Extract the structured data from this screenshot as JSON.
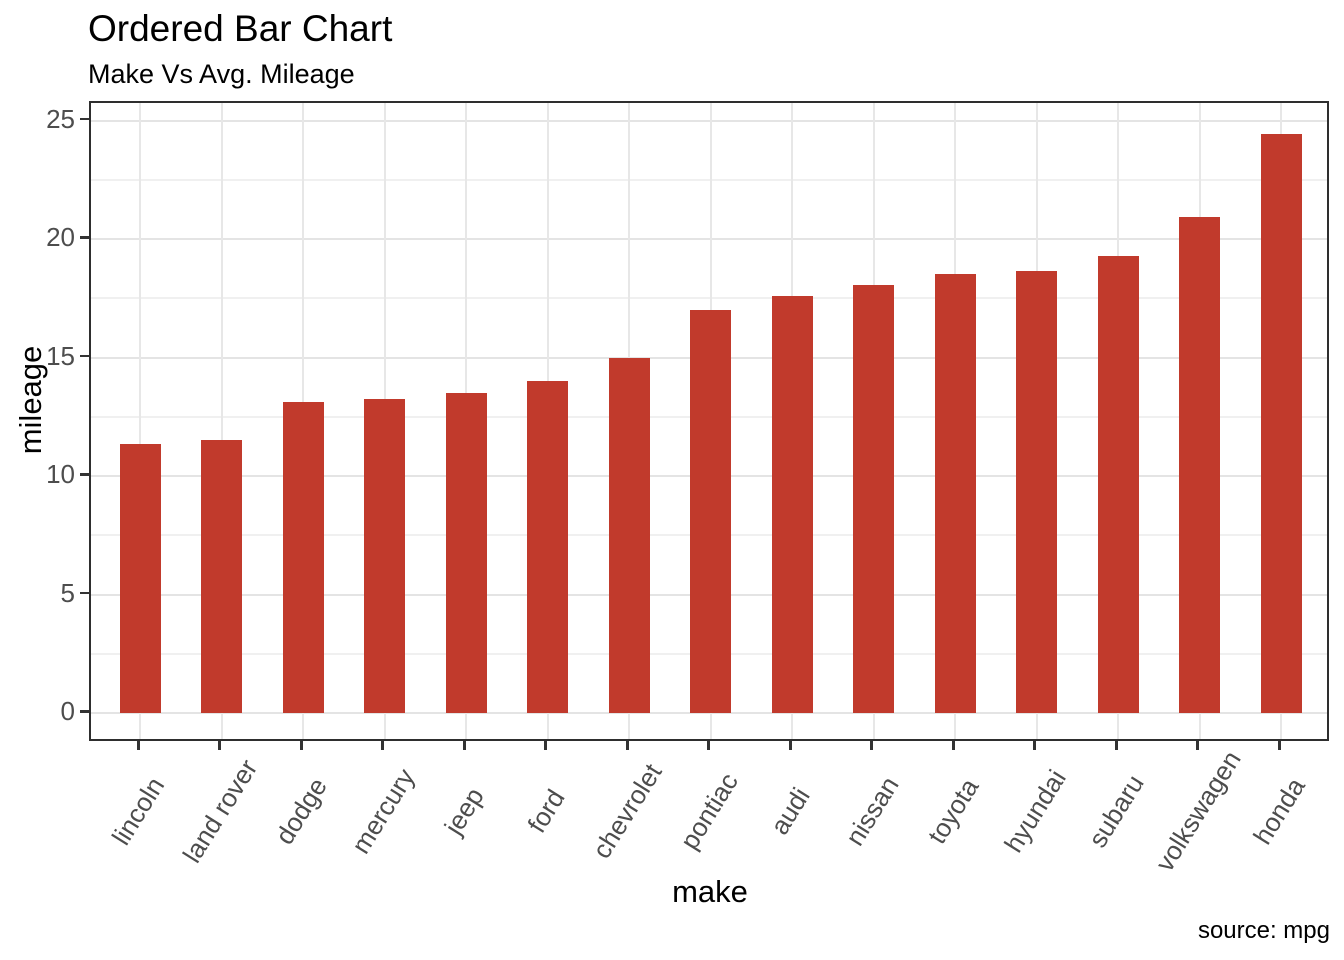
{
  "header": {
    "title": "Ordered Bar Chart",
    "subtitle": "Make Vs Avg. Mileage"
  },
  "footer": {
    "caption": "source: mpg"
  },
  "colors": {
    "bar_fill": "#c13a2c",
    "grid_major": "#e4e4e4",
    "grid_minor": "#f0f0f0",
    "panel_border": "#2e2e2e",
    "tick_mark": "#333333",
    "tick_text": "#4d4d4d",
    "title_text": "#000000",
    "background": "#ffffff"
  },
  "chart_data": {
    "type": "bar",
    "title": "Ordered Bar Chart",
    "subtitle": "Make Vs Avg. Mileage",
    "caption": "source: mpg",
    "xlabel": "make",
    "ylabel": "mileage",
    "categories": [
      "lincoln",
      "land rover",
      "dodge",
      "mercury",
      "jeep",
      "ford",
      "chevrolet",
      "pontiac",
      "audi",
      "nissan",
      "toyota",
      "hyundai",
      "subaru",
      "volkswagen",
      "honda"
    ],
    "values": [
      11.33,
      11.5,
      13.14,
      13.25,
      13.5,
      14.0,
      15.0,
      17.0,
      17.61,
      18.08,
      18.53,
      18.64,
      19.29,
      20.93,
      24.44
    ],
    "ylim": [
      0,
      25
    ],
    "yticks": [
      0,
      5,
      10,
      15,
      20,
      25
    ],
    "yticks_minor": [
      2.5,
      7.5,
      12.5,
      17.5,
      22.5
    ],
    "grid": "horizontal major+minor and vertical major, light gray on white panel",
    "legend": "none",
    "bar_color": "#c13a2c",
    "x_tick_label_angle_deg": 58,
    "bar_relative_width": 0.5
  }
}
